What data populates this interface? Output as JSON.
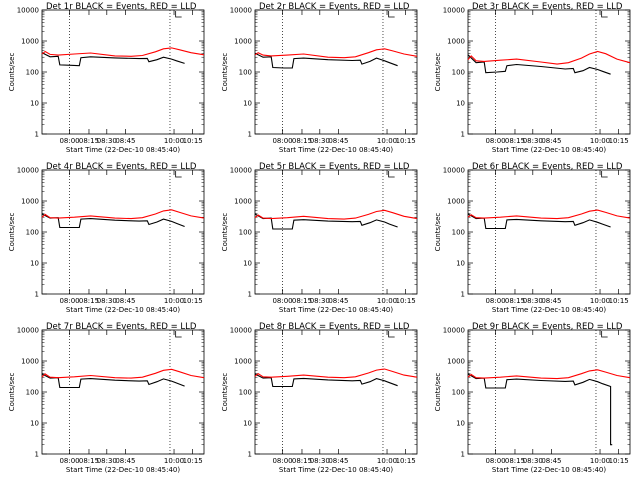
{
  "x_axis_label": "Start Time (22-Dec-10 08:45:40)",
  "y_axis_label": "Counts/sec",
  "x_ticks": [
    "08:00",
    "08:15",
    "08:30",
    "08:45",
    "10:00",
    "10:15"
  ],
  "y_ticks": [
    "1",
    "10",
    "100",
    "1000",
    "10000"
  ],
  "colors": {
    "events": "#000000",
    "lld": "#ff0000",
    "axis": "#000000"
  },
  "chart_data": [
    {
      "type": "line",
      "title": "Det 1r BLACK = Events, RED = LLD",
      "ylim": [
        1,
        10000
      ],
      "y_scale": "log",
      "series": [
        {
          "name": "Events",
          "x": [
            0.0,
            0.05,
            0.1,
            0.11,
            0.18,
            0.23,
            0.24,
            0.3,
            0.45,
            0.6,
            0.65,
            0.66,
            0.71,
            0.75,
            0.8,
            0.83,
            0.88
          ],
          "y": [
            420,
            310,
            320,
            170,
            165,
            160,
            290,
            310,
            285,
            270,
            275,
            215,
            250,
            300,
            260,
            230,
            190
          ]
        },
        {
          "name": "LLD",
          "x": [
            0.0,
            0.02,
            0.05,
            0.1,
            0.2,
            0.3,
            0.45,
            0.55,
            0.62,
            0.7,
            0.75,
            0.8,
            0.85,
            0.92,
            1.0
          ],
          "y": [
            380,
            460,
            370,
            350,
            380,
            410,
            330,
            320,
            340,
            450,
            560,
            600,
            520,
            420,
            360
          ]
        }
      ]
    },
    {
      "type": "line",
      "title": "Det 2r BLACK = Events, RED = LLD",
      "ylim": [
        1,
        10000
      ],
      "y_scale": "log",
      "series": [
        {
          "name": "Events",
          "x": [
            0.0,
            0.05,
            0.1,
            0.11,
            0.18,
            0.23,
            0.24,
            0.3,
            0.45,
            0.6,
            0.65,
            0.66,
            0.71,
            0.75,
            0.8,
            0.83,
            0.88
          ],
          "y": [
            400,
            300,
            310,
            140,
            135,
            135,
            270,
            280,
            250,
            235,
            240,
            180,
            220,
            280,
            230,
            200,
            160
          ]
        },
        {
          "name": "LLD",
          "x": [
            0.0,
            0.02,
            0.05,
            0.1,
            0.2,
            0.3,
            0.45,
            0.55,
            0.62,
            0.7,
            0.75,
            0.8,
            0.85,
            0.92,
            1.0
          ],
          "y": [
            360,
            420,
            350,
            330,
            350,
            380,
            300,
            290,
            310,
            420,
            520,
            560,
            480,
            380,
            320
          ]
        }
      ]
    },
    {
      "type": "line",
      "title": "Det 3r BLACK = Events, RED = LLD",
      "ylim": [
        1,
        10000
      ],
      "y_scale": "log",
      "series": [
        {
          "name": "Events",
          "x": [
            0.0,
            0.05,
            0.1,
            0.11,
            0.18,
            0.23,
            0.24,
            0.3,
            0.45,
            0.6,
            0.65,
            0.66,
            0.71,
            0.75,
            0.8,
            0.83,
            0.88
          ],
          "y": [
            360,
            200,
            210,
            95,
            100,
            105,
            160,
            175,
            150,
            125,
            130,
            95,
            110,
            140,
            120,
            105,
            85
          ]
        },
        {
          "name": "LLD",
          "x": [
            0.0,
            0.02,
            0.05,
            0.1,
            0.2,
            0.3,
            0.45,
            0.55,
            0.62,
            0.7,
            0.75,
            0.8,
            0.85,
            0.92,
            1.0
          ],
          "y": [
            250,
            330,
            230,
            220,
            240,
            260,
            210,
            180,
            200,
            280,
            380,
            460,
            390,
            260,
            200
          ]
        }
      ]
    },
    {
      "type": "line",
      "title": "Det 4r BLACK = Events, RED = LLD",
      "ylim": [
        1,
        10000
      ],
      "y_scale": "log",
      "series": [
        {
          "name": "Events",
          "x": [
            0.0,
            0.05,
            0.1,
            0.11,
            0.18,
            0.23,
            0.24,
            0.3,
            0.45,
            0.6,
            0.65,
            0.66,
            0.71,
            0.75,
            0.8,
            0.83,
            0.88
          ],
          "y": [
            380,
            280,
            290,
            140,
            140,
            140,
            260,
            270,
            240,
            225,
            230,
            175,
            210,
            260,
            220,
            190,
            150
          ]
        },
        {
          "name": "LLD",
          "x": [
            0.0,
            0.02,
            0.05,
            0.1,
            0.2,
            0.3,
            0.45,
            0.55,
            0.62,
            0.7,
            0.75,
            0.8,
            0.85,
            0.92,
            1.0
          ],
          "y": [
            300,
            370,
            290,
            280,
            300,
            330,
            280,
            270,
            290,
            380,
            480,
            520,
            430,
            330,
            280
          ]
        }
      ]
    },
    {
      "type": "line",
      "title": "Det 5r BLACK = Events, RED = LLD",
      "ylim": [
        1,
        10000
      ],
      "y_scale": "log",
      "series": [
        {
          "name": "Events",
          "x": [
            0.0,
            0.05,
            0.1,
            0.11,
            0.18,
            0.23,
            0.24,
            0.3,
            0.45,
            0.6,
            0.65,
            0.66,
            0.71,
            0.75,
            0.8,
            0.83,
            0.88
          ],
          "y": [
            380,
            270,
            280,
            125,
            125,
            125,
            240,
            250,
            225,
            215,
            220,
            165,
            200,
            245,
            210,
            180,
            145
          ]
        },
        {
          "name": "LLD",
          "x": [
            0.0,
            0.02,
            0.05,
            0.1,
            0.2,
            0.3,
            0.45,
            0.55,
            0.62,
            0.7,
            0.75,
            0.8,
            0.85,
            0.92,
            1.0
          ],
          "y": [
            290,
            350,
            280,
            270,
            290,
            320,
            270,
            260,
            280,
            370,
            460,
            500,
            420,
            320,
            270
          ]
        }
      ]
    },
    {
      "type": "line",
      "title": "Det 6r BLACK = Events, RED = LLD",
      "ylim": [
        1,
        10000
      ],
      "y_scale": "log",
      "series": [
        {
          "name": "Events",
          "x": [
            0.0,
            0.05,
            0.1,
            0.11,
            0.18,
            0.23,
            0.24,
            0.3,
            0.45,
            0.6,
            0.65,
            0.66,
            0.71,
            0.75,
            0.8,
            0.83,
            0.88
          ],
          "y": [
            380,
            270,
            280,
            130,
            130,
            130,
            245,
            255,
            230,
            215,
            220,
            165,
            200,
            245,
            205,
            180,
            145
          ]
        },
        {
          "name": "LLD",
          "x": [
            0.0,
            0.02,
            0.05,
            0.1,
            0.2,
            0.3,
            0.45,
            0.55,
            0.62,
            0.7,
            0.75,
            0.8,
            0.85,
            0.92,
            1.0
          ],
          "y": [
            300,
            360,
            290,
            280,
            300,
            330,
            280,
            270,
            290,
            380,
            470,
            510,
            430,
            330,
            280
          ]
        }
      ]
    },
    {
      "type": "line",
      "title": "Det 7r BLACK = Events, RED = LLD",
      "ylim": [
        1,
        10000
      ],
      "y_scale": "log",
      "series": [
        {
          "name": "Events",
          "x": [
            0.0,
            0.05,
            0.1,
            0.11,
            0.18,
            0.23,
            0.24,
            0.3,
            0.45,
            0.6,
            0.65,
            0.66,
            0.71,
            0.75,
            0.8,
            0.83,
            0.88
          ],
          "y": [
            380,
            280,
            290,
            140,
            140,
            140,
            260,
            270,
            240,
            225,
            230,
            175,
            215,
            265,
            225,
            195,
            155
          ]
        },
        {
          "name": "LLD",
          "x": [
            0.0,
            0.02,
            0.05,
            0.1,
            0.2,
            0.3,
            0.45,
            0.55,
            0.62,
            0.7,
            0.75,
            0.8,
            0.85,
            0.92,
            1.0
          ],
          "y": [
            310,
            380,
            300,
            290,
            310,
            340,
            290,
            280,
            300,
            400,
            500,
            540,
            450,
            340,
            290
          ]
        }
      ]
    },
    {
      "type": "line",
      "title": "Det 8r BLACK = Events, RED = LLD",
      "ylim": [
        1,
        10000
      ],
      "y_scale": "log",
      "series": [
        {
          "name": "Events",
          "x": [
            0.0,
            0.05,
            0.1,
            0.11,
            0.18,
            0.23,
            0.24,
            0.3,
            0.45,
            0.6,
            0.65,
            0.66,
            0.71,
            0.75,
            0.8,
            0.83,
            0.88
          ],
          "y": [
            380,
            280,
            290,
            150,
            150,
            150,
            265,
            275,
            245,
            230,
            235,
            180,
            215,
            270,
            230,
            200,
            160
          ]
        },
        {
          "name": "LLD",
          "x": [
            0.0,
            0.02,
            0.05,
            0.1,
            0.2,
            0.3,
            0.45,
            0.55,
            0.62,
            0.7,
            0.75,
            0.8,
            0.85,
            0.92,
            1.0
          ],
          "y": [
            320,
            390,
            310,
            300,
            320,
            350,
            300,
            290,
            310,
            410,
            510,
            550,
            460,
            350,
            300
          ]
        }
      ]
    },
    {
      "type": "line",
      "title": "Det 9r BLACK = Events, RED = LLD",
      "ylim": [
        1,
        10000
      ],
      "y_scale": "log",
      "series": [
        {
          "name": "Events",
          "x": [
            0.0,
            0.05,
            0.1,
            0.11,
            0.18,
            0.23,
            0.24,
            0.3,
            0.45,
            0.6,
            0.65,
            0.66,
            0.71,
            0.75,
            0.8,
            0.83,
            0.88,
            0.88,
            0.89
          ],
          "y": [
            380,
            270,
            280,
            135,
            135,
            135,
            250,
            260,
            235,
            220,
            225,
            170,
            205,
            255,
            215,
            185,
            150,
            2,
            2
          ]
        },
        {
          "name": "LLD",
          "x": [
            0.0,
            0.02,
            0.05,
            0.1,
            0.2,
            0.3,
            0.45,
            0.55,
            0.62,
            0.7,
            0.75,
            0.8,
            0.85,
            0.92,
            1.0
          ],
          "y": [
            300,
            370,
            290,
            280,
            300,
            330,
            280,
            270,
            290,
            390,
            480,
            520,
            440,
            340,
            290
          ]
        }
      ]
    }
  ]
}
